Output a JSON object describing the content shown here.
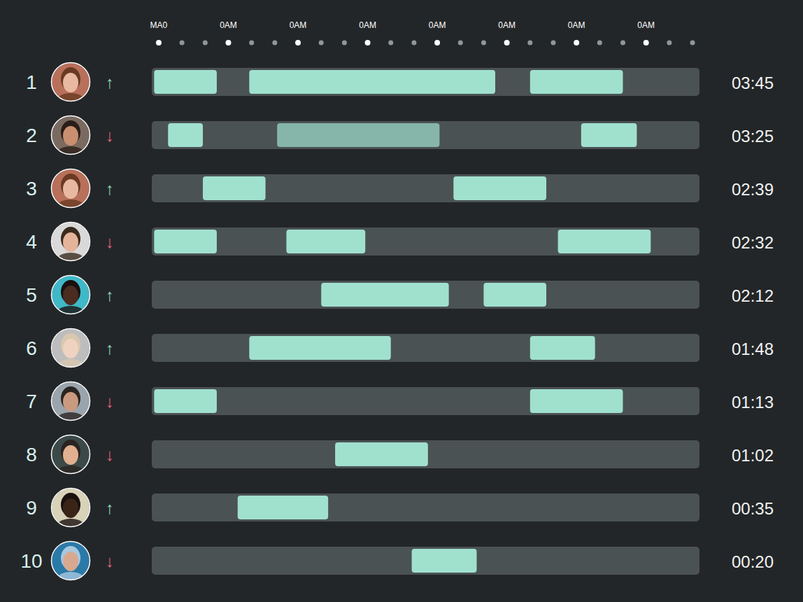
{
  "chart_data": {
    "type": "timeline",
    "orientation": "horizontal",
    "categories": [
      "1",
      "2",
      "3",
      "4",
      "5",
      "6",
      "7",
      "8",
      "9",
      "10"
    ],
    "xlim": [
      -0.3,
      23.3
    ],
    "xticks": [
      {
        "value": 0,
        "label": "MA0"
      },
      {
        "value": 3,
        "label": "0AM"
      },
      {
        "value": 6,
        "label": "0AM"
      },
      {
        "value": 9,
        "label": "0AM"
      },
      {
        "value": 12,
        "label": "0AM"
      },
      {
        "value": 15,
        "label": "0AM"
      },
      {
        "value": 18,
        "label": "0AM"
      },
      {
        "value": 21,
        "label": "0AM"
      }
    ],
    "color": "#a0e1cd",
    "rows": [
      {
        "trend": "↑",
        "total": "03:45",
        "segments": [
          {
            "start": -0.2,
            "end": 2.5
          },
          {
            "start": 3.9,
            "end": 14.5
          },
          {
            "start": 16.0,
            "end": 20.0
          }
        ]
      },
      {
        "trend": "↓",
        "total": "03:25",
        "segments": [
          {
            "start": 0.4,
            "end": 1.9
          },
          {
            "start": 5.1,
            "end": 12.1,
            "color": "#85b6a9"
          },
          {
            "start": 18.2,
            "end": 20.6
          }
        ]
      },
      {
        "trend": "↑",
        "total": "02:39",
        "segments": [
          {
            "start": 1.9,
            "end": 4.6
          },
          {
            "start": 12.7,
            "end": 16.7
          }
        ]
      },
      {
        "trend": "↓",
        "total": "02:32",
        "segments": [
          {
            "start": -0.2,
            "end": 2.5
          },
          {
            "start": 5.5,
            "end": 8.9
          },
          {
            "start": 17.2,
            "end": 21.2
          }
        ]
      },
      {
        "trend": "↑",
        "total": "02:12",
        "segments": [
          {
            "start": 7.0,
            "end": 12.5
          },
          {
            "start": 14.0,
            "end": 16.7
          }
        ]
      },
      {
        "trend": "↑",
        "total": "01:48",
        "segments": [
          {
            "start": 3.9,
            "end": 10.0
          },
          {
            "start": 16.0,
            "end": 18.8
          }
        ]
      },
      {
        "trend": "↓",
        "total": "01:13",
        "segments": [
          {
            "start": -0.2,
            "end": 2.5
          },
          {
            "start": 16.0,
            "end": 20.0
          }
        ]
      },
      {
        "trend": "↓",
        "total": "01:02",
        "segments": [
          {
            "start": 7.6,
            "end": 11.6
          }
        ]
      },
      {
        "trend": "↑",
        "total": "00:35",
        "segments": [
          {
            "start": 3.4,
            "end": 7.3
          }
        ]
      },
      {
        "trend": "↓",
        "total": "00:20",
        "segments": [
          {
            "start": 10.9,
            "end": 13.7
          }
        ]
      }
    ]
  }
}
